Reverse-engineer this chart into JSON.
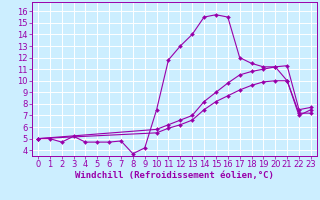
{
  "title": "",
  "xlabel": "Windchill (Refroidissement éolien,°C)",
  "ylabel": "",
  "bg_color": "#cceeff",
  "grid_color": "#ffffff",
  "line_color": "#9900aa",
  "marker_color": "#9900aa",
  "xlim": [
    -0.5,
    23.5
  ],
  "ylim": [
    3.5,
    16.8
  ],
  "xticks": [
    0,
    1,
    2,
    3,
    4,
    5,
    6,
    7,
    8,
    9,
    10,
    11,
    12,
    13,
    14,
    15,
    16,
    17,
    18,
    19,
    20,
    21,
    22,
    23
  ],
  "yticks": [
    4,
    5,
    6,
    7,
    8,
    9,
    10,
    11,
    12,
    13,
    14,
    15,
    16
  ],
  "xlabel_fontsize": 6.5,
  "tick_fontsize": 6,
  "line1_x": [
    0,
    1,
    2,
    3,
    4,
    5,
    6,
    7,
    8,
    9,
    10,
    11,
    12,
    13,
    14,
    15,
    16,
    17,
    18,
    19,
    20,
    21,
    22,
    23
  ],
  "line1_y": [
    5.0,
    5.0,
    4.7,
    5.2,
    4.7,
    4.7,
    4.7,
    4.8,
    3.7,
    4.2,
    7.5,
    11.8,
    13.0,
    14.0,
    15.5,
    15.7,
    15.5,
    12.0,
    11.5,
    11.2,
    11.2,
    10.0,
    7.0,
    7.5
  ],
  "line2_x": [
    0,
    10,
    11,
    12,
    13,
    14,
    15,
    16,
    17,
    18,
    19,
    20,
    21,
    22,
    23
  ],
  "line2_y": [
    5.0,
    5.8,
    6.2,
    6.6,
    7.0,
    8.2,
    9.0,
    9.8,
    10.5,
    10.8,
    11.0,
    11.2,
    11.3,
    7.5,
    7.7
  ],
  "line3_x": [
    0,
    10,
    11,
    12,
    13,
    14,
    15,
    16,
    17,
    18,
    19,
    20,
    21,
    22,
    23
  ],
  "line3_y": [
    5.0,
    5.5,
    5.9,
    6.2,
    6.6,
    7.5,
    8.2,
    8.7,
    9.2,
    9.6,
    9.9,
    10.0,
    10.0,
    7.2,
    7.2
  ]
}
